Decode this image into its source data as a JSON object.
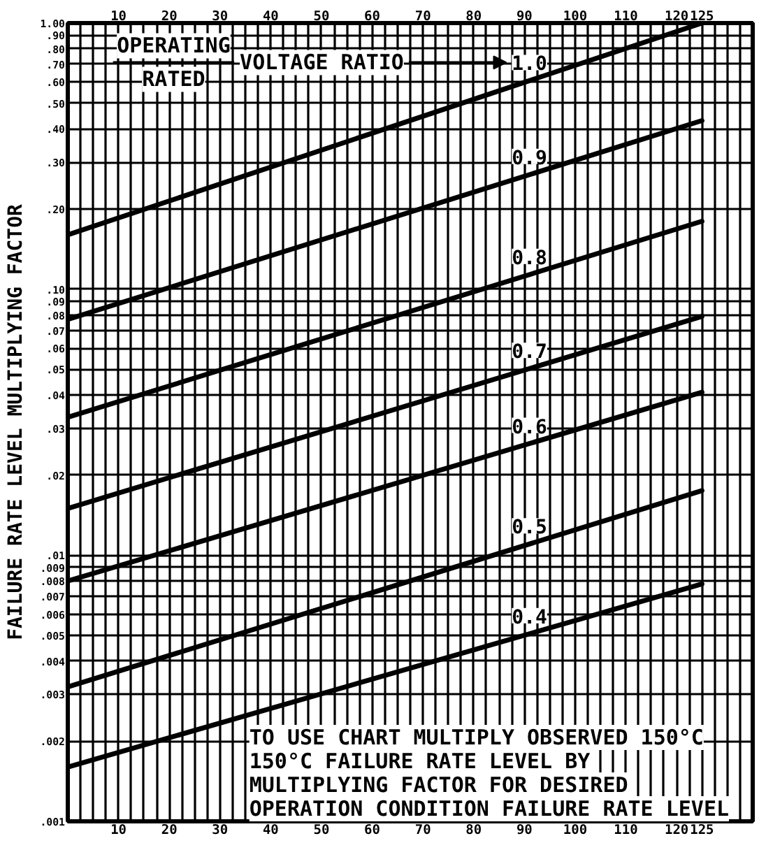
{
  "chart_data": {
    "type": "line",
    "ylabel": "FAILURE RATE LEVEL MULTIPLYING FACTOR",
    "log": "y",
    "grid": true,
    "line_style": "solid",
    "x": [
      0,
      125
    ],
    "series": [
      {
        "name": "1.0",
        "color": "#000000",
        "values": [
          0.16,
          1.0
        ]
      },
      {
        "name": "0.9",
        "color": "#000000",
        "values": [
          0.077,
          0.43
        ]
      },
      {
        "name": "0.8",
        "color": "#000000",
        "values": [
          0.033,
          0.18
        ]
      },
      {
        "name": "0.7",
        "color": "#000000",
        "values": [
          0.015,
          0.079
        ]
      },
      {
        "name": "0.6",
        "color": "#000000",
        "values": [
          0.008,
          0.041
        ]
      },
      {
        "name": "0.5",
        "color": "#000000",
        "values": [
          0.0032,
          0.0175
        ]
      },
      {
        "name": "0.4",
        "color": "#000000",
        "values": [
          0.0016,
          0.0078
        ]
      }
    ],
    "xlim": [
      0,
      135
    ],
    "xticks": [
      {
        "value": 2.5,
        "label": null
      },
      {
        "value": 5,
        "label": null
      },
      {
        "value": 7.5,
        "label": null
      },
      10,
      {
        "value": 12.5,
        "label": null
      },
      {
        "value": 15,
        "label": null
      },
      {
        "value": 17.5,
        "label": null
      },
      20,
      {
        "value": 22.5,
        "label": null
      },
      {
        "value": 25,
        "label": null
      },
      {
        "value": 27.5,
        "label": null
      },
      30,
      {
        "value": 32.5,
        "label": null
      },
      {
        "value": 35,
        "label": null
      },
      {
        "value": 37.5,
        "label": null
      },
      40,
      {
        "value": 42.5,
        "label": null
      },
      {
        "value": 45,
        "label": null
      },
      {
        "value": 47.5,
        "label": null
      },
      50,
      {
        "value": 52.5,
        "label": null
      },
      {
        "value": 55,
        "label": null
      },
      {
        "value": 57.5,
        "label": null
      },
      60,
      {
        "value": 62.5,
        "label": null
      },
      {
        "value": 65,
        "label": null
      },
      {
        "value": 67.5,
        "label": null
      },
      70,
      {
        "value": 72.5,
        "label": null
      },
      {
        "value": 75,
        "label": null
      },
      {
        "value": 77.5,
        "label": null
      },
      80,
      {
        "value": 82.5,
        "label": null
      },
      {
        "value": 85,
        "label": null
      },
      {
        "value": 87.5,
        "label": null
      },
      90,
      {
        "value": 92.5,
        "label": null
      },
      {
        "value": 95,
        "label": null
      },
      {
        "value": 97.5,
        "label": null
      },
      100,
      {
        "value": 102.5,
        "label": null
      },
      {
        "value": 105,
        "label": null
      },
      {
        "value": 107.5,
        "label": null
      },
      110,
      {
        "value": 112.5,
        "label": null
      },
      {
        "value": 115,
        "label": null
      },
      {
        "value": 117.5,
        "label": null
      },
      120,
      {
        "value": 122.5,
        "label": null
      },
      125,
      {
        "value": 127.5,
        "label": null
      },
      {
        "value": 130,
        "label": null
      },
      {
        "value": 132.5,
        "label": null
      }
    ],
    "x2lim": [
      0,
      135
    ],
    "x2ticks": [
      10,
      20,
      30,
      40,
      50,
      60,
      70,
      80,
      90,
      100,
      110,
      120,
      125
    ],
    "ylim": [
      0.001,
      1.0
    ],
    "yticks": [
      {
        "value": 0.001,
        "label": ".001"
      },
      {
        "value": 0.002,
        "label": ".002"
      },
      {
        "value": 0.003,
        "label": ".003"
      },
      {
        "value": 0.004,
        "label": ".004"
      },
      {
        "value": 0.005,
        "label": ".005"
      },
      {
        "value": 0.006,
        "label": ".006"
      },
      {
        "value": 0.007,
        "label": ".007"
      },
      {
        "value": 0.008,
        "label": ".008"
      },
      {
        "value": 0.009,
        "label": ".009"
      },
      {
        "value": 0.01,
        "label": ".01"
      },
      {
        "value": 0.02,
        "label": ".02"
      },
      {
        "value": 0.03,
        "label": ".03"
      },
      {
        "value": 0.04,
        "label": ".04"
      },
      {
        "value": 0.05,
        "label": ".05"
      },
      {
        "value": 0.06,
        "label": ".06"
      },
      {
        "value": 0.07,
        "label": ".07"
      },
      {
        "value": 0.08,
        "label": ".08"
      },
      {
        "value": 0.09,
        "label": ".09"
      },
      {
        "value": 0.1,
        "label": ".10"
      },
      {
        "value": 0.2,
        "label": ".20"
      },
      {
        "value": 0.3,
        "label": ".30"
      },
      {
        "value": 0.4,
        "label": ".40"
      },
      {
        "value": 0.5,
        "label": ".50"
      },
      {
        "value": 0.6,
        "label": ".60"
      },
      {
        "value": 0.7,
        "label": ".70"
      },
      {
        "value": 0.8,
        "label": ".80"
      },
      {
        "value": 0.9,
        "label": ".90"
      },
      {
        "value": 1.0,
        "label": "1.00"
      }
    ],
    "annotations": [
      "OPERATING",
      "RATED",
      "VOLTAGE RATIO",
      "TO USE CHART MULTIPLY OBSERVED 150°C",
      "150°C FAILURE RATE LEVEL BY",
      "MULTIPLYING FACTOR FOR DESIRED",
      "OPERATION CONDITION FAILURE RATE LEVEL"
    ]
  }
}
